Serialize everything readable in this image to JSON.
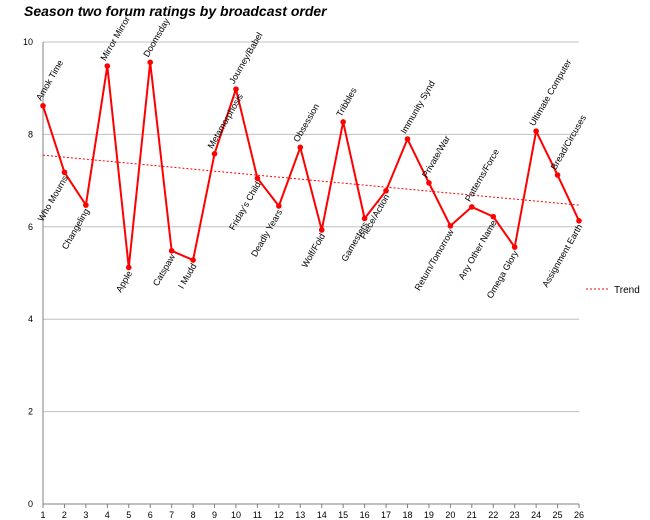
{
  "chart_data": {
    "type": "line",
    "title": "Season two forum ratings by broadcast order",
    "xlabel": "",
    "ylabel": "",
    "x": [
      1,
      2,
      3,
      4,
      5,
      6,
      7,
      8,
      9,
      10,
      11,
      12,
      13,
      14,
      15,
      16,
      17,
      18,
      19,
      20,
      21,
      22,
      23,
      24,
      25,
      26
    ],
    "xlim": [
      1,
      26
    ],
    "ylim": [
      0,
      10
    ],
    "y_ticks": [
      0,
      2,
      4,
      6,
      8,
      10
    ],
    "grid": true,
    "series": [
      {
        "color": "#ff0000",
        "values": [
          8.62,
          7.18,
          6.47,
          9.48,
          5.12,
          9.56,
          5.48,
          5.28,
          7.58,
          8.98,
          7.05,
          6.45,
          7.72,
          5.93,
          8.27,
          6.18,
          6.78,
          7.9,
          6.95,
          6.02,
          6.43,
          6.22,
          5.56,
          8.07,
          7.12,
          6.13
        ],
        "labels": [
          "Amok Time",
          "Who Mourns",
          "Changeling",
          "Mirror Mirror",
          "Apple",
          "Doomsday",
          "Catspaw",
          "I Mudd",
          "Metamorphosis",
          "Journey/Babel",
          "Friday's Child",
          "Deadly Years",
          "Obsession",
          "Wolf/Fold",
          "Tribbles",
          "Gamesters",
          "Piece/Action",
          "Immunity Synd",
          "Private/War",
          "Return/Tomorrow",
          "Patterns/Force",
          "Any Other Name",
          "Omega Glory",
          "Ultimate Computer",
          "Bread/Circuses",
          "Assignment Earth"
        ],
        "label_side": [
          "above",
          "below",
          "below",
          "above",
          "below",
          "above",
          "below",
          "below",
          "above",
          "above",
          "below",
          "below",
          "above",
          "below",
          "above",
          "below",
          "below",
          "above",
          "above",
          "below",
          "above",
          "below",
          "below",
          "above",
          "above",
          "below"
        ]
      }
    ],
    "trend": {
      "name": "Trend",
      "color": "#ff0000",
      "start": 7.55,
      "end": 6.47
    },
    "legend_position": "right"
  }
}
